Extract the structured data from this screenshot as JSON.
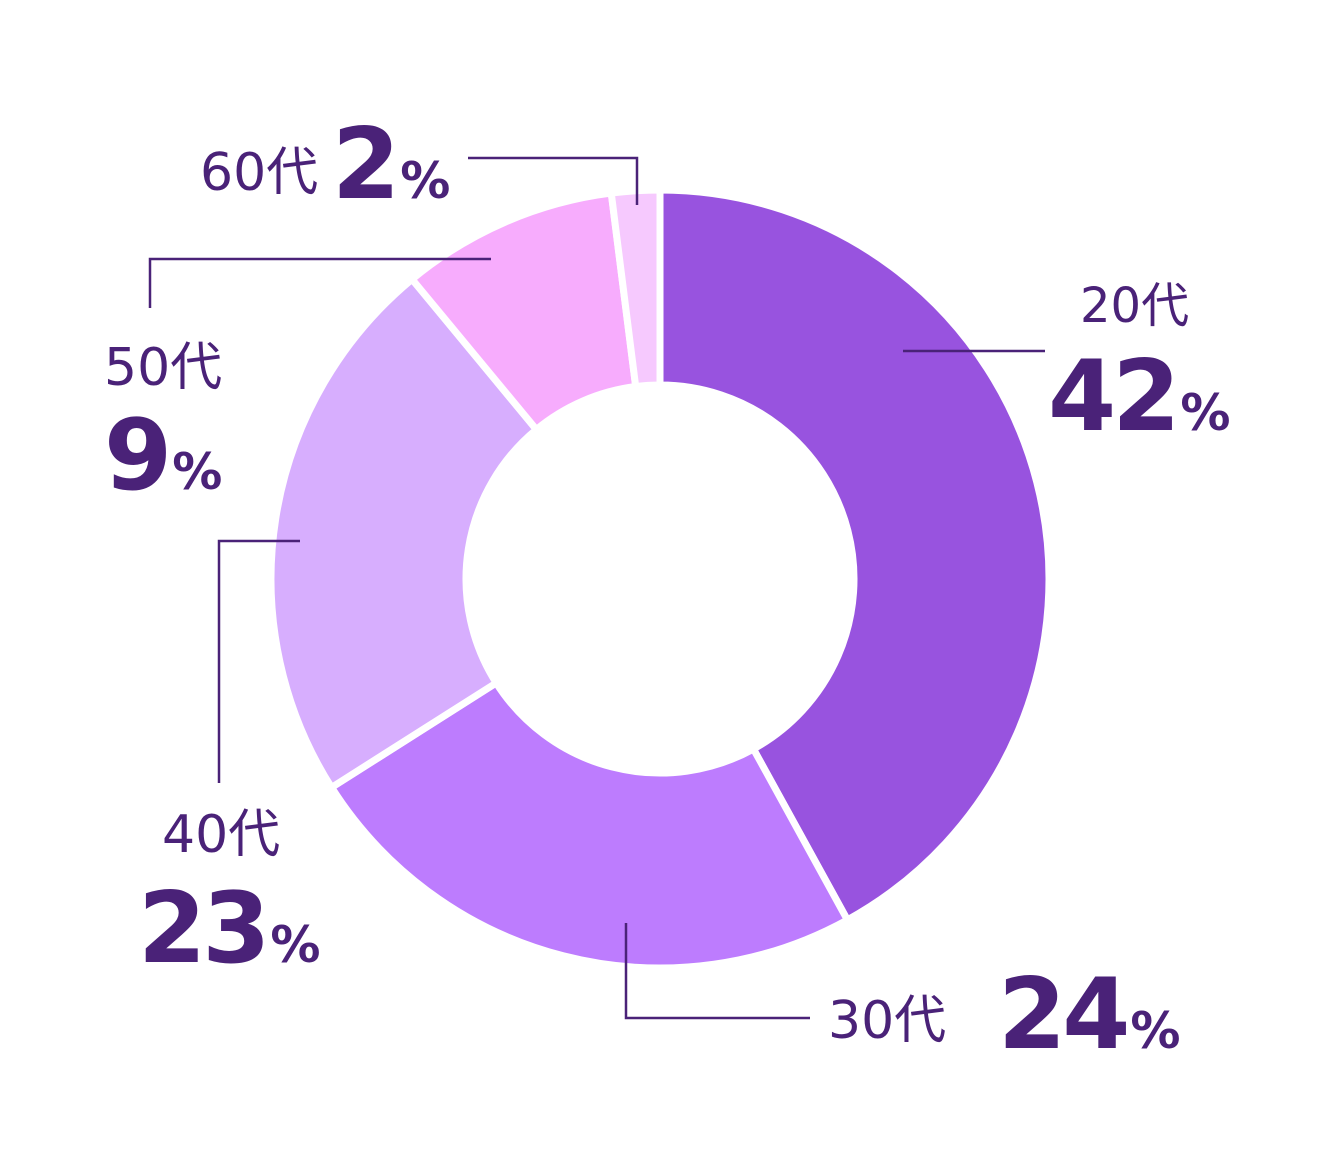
{
  "chart_data": {
    "type": "pie",
    "variant": "donut",
    "title": "",
    "categories": [
      "20代",
      "30代",
      "40代",
      "50代",
      "60代"
    ],
    "values": [
      42,
      24,
      23,
      9,
      2
    ],
    "value_suffix": "%",
    "colors": [
      "#9853df",
      "#bd7cfe",
      "#d7aefe",
      "#f7acfd",
      "#f6c9fe"
    ],
    "label_color": "#4a2278",
    "start_angle": "12 o'clock",
    "direction": "clockwise",
    "legend": "none (callout labels)"
  }
}
